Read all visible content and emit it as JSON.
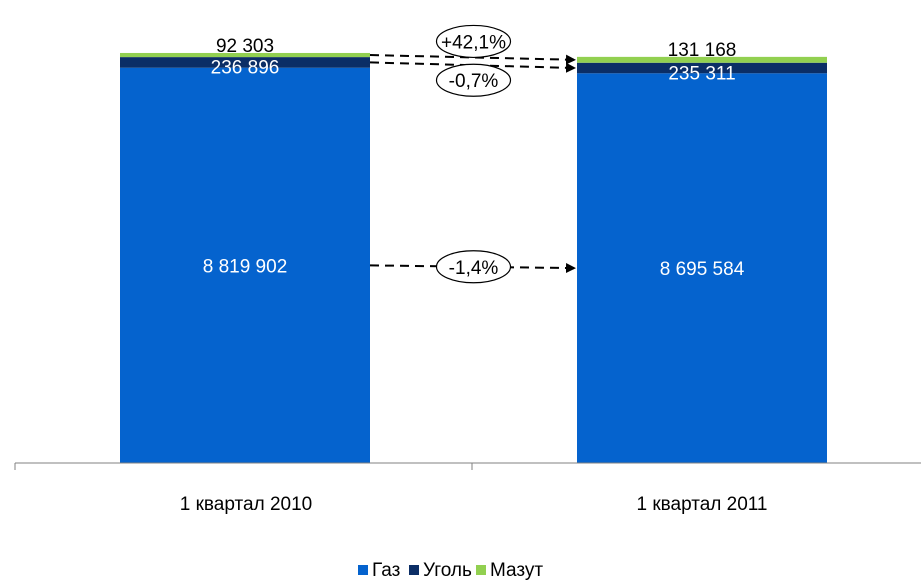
{
  "chart_data": {
    "type": "bar",
    "stacked": true,
    "categories": [
      "1 квартал 2010",
      "1 квартал 2011"
    ],
    "series": [
      {
        "name": "Газ",
        "color": "#0563CE",
        "values": [
          8819902,
          8695584
        ],
        "labels": [
          "8 819 902",
          "8 695 584"
        ],
        "label_color": "#ffffff"
      },
      {
        "name": "Уголь",
        "color": "#0B2E66",
        "values": [
          236896,
          235311
        ],
        "labels": [
          "236 896",
          "235 311"
        ],
        "label_color": "#ffffff"
      },
      {
        "name": "Мазут",
        "color": "#92D050",
        "values": [
          92303,
          131168
        ],
        "labels": [
          "92 303",
          "131 168"
        ],
        "label_color": "#000000"
      }
    ],
    "changes": [
      {
        "series": "Мазут",
        "label": "+42,1%"
      },
      {
        "series": "Уголь",
        "label": "-0,7%"
      },
      {
        "series": "Газ",
        "label": "-1,4%"
      }
    ],
    "title": "",
    "xlabel": "",
    "ylabel": "",
    "ylim": [
      0,
      9148371
    ],
    "grid": false,
    "legend": "bottom"
  }
}
